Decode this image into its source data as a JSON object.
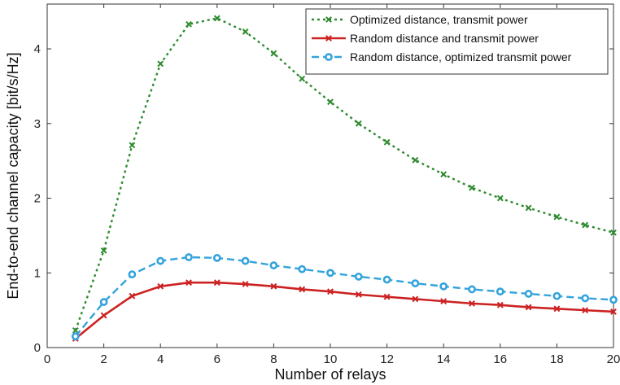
{
  "chart_data": {
    "type": "line",
    "xlabel": "Number of relays",
    "ylabel": "End-to-end channel capacity [bit/s/Hz]",
    "xlim": [
      0,
      20
    ],
    "ylim": [
      0,
      4.6
    ],
    "x_ticks": [
      0,
      2,
      4,
      6,
      8,
      10,
      12,
      14,
      16,
      18,
      20
    ],
    "y_ticks": [
      0,
      1,
      2,
      3,
      4
    ],
    "grid": false,
    "legend_position": "top-right",
    "series": [
      {
        "name": "Optimized distance, transmit power",
        "color": "#2e8b2e",
        "line_style": "dotted",
        "marker": "x",
        "x": [
          1,
          2,
          3,
          4,
          5,
          6,
          7,
          8,
          9,
          10,
          11,
          12,
          13,
          14,
          15,
          16,
          17,
          18,
          19,
          20
        ],
        "y": [
          0.23,
          1.3,
          2.71,
          3.8,
          4.33,
          4.41,
          4.23,
          3.94,
          3.6,
          3.29,
          3.0,
          2.75,
          2.51,
          2.32,
          2.14,
          2.0,
          1.87,
          1.75,
          1.64,
          1.54
        ]
      },
      {
        "name": "Random distance and transmit power",
        "color": "#cc2222",
        "line_style": "solid",
        "marker": "x",
        "x": [
          1,
          2,
          3,
          4,
          5,
          6,
          7,
          8,
          9,
          10,
          11,
          12,
          13,
          14,
          15,
          16,
          17,
          18,
          19,
          20
        ],
        "y": [
          0.12,
          0.43,
          0.69,
          0.82,
          0.87,
          0.87,
          0.85,
          0.82,
          0.78,
          0.75,
          0.71,
          0.68,
          0.65,
          0.62,
          0.59,
          0.57,
          0.54,
          0.52,
          0.5,
          0.48
        ]
      },
      {
        "name": "Random distance, optimized transmit power",
        "color": "#33a3dc",
        "line_style": "dashed",
        "marker": "o",
        "x": [
          1,
          2,
          3,
          4,
          5,
          6,
          7,
          8,
          9,
          10,
          11,
          12,
          13,
          14,
          15,
          16,
          17,
          18,
          19,
          20
        ],
        "y": [
          0.15,
          0.61,
          0.98,
          1.16,
          1.21,
          1.2,
          1.16,
          1.1,
          1.05,
          1.0,
          0.95,
          0.91,
          0.86,
          0.82,
          0.78,
          0.75,
          0.72,
          0.69,
          0.66,
          0.64
        ]
      }
    ]
  }
}
